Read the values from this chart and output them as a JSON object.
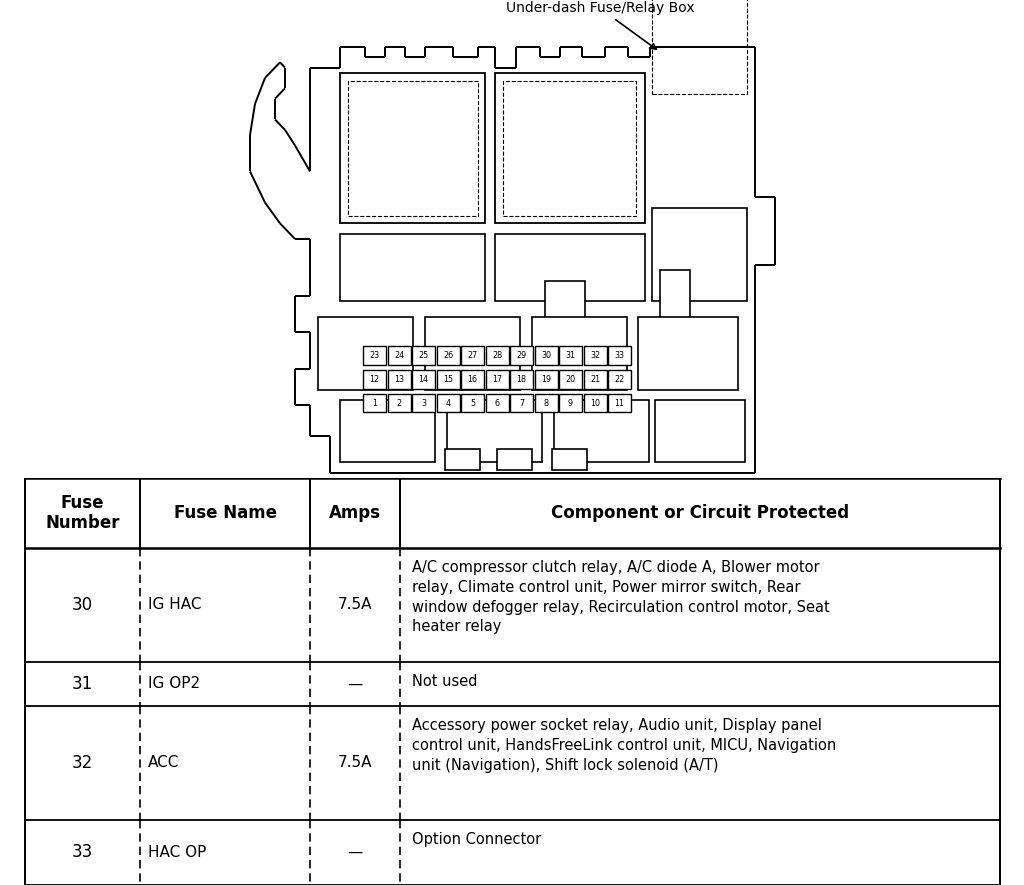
{
  "title_label": "Under-dash Fuse/Relay Box",
  "table_headers": [
    "Fuse\nNumber",
    "Fuse Name",
    "Amps",
    "Component or Circuit Protected"
  ],
  "table_rows": [
    [
      "30",
      "IG HAC",
      "7.5A",
      "A/C compressor clutch relay, A/C diode A, Blower motor\nrelay, Climate control unit, Power mirror switch, Rear\nwindow defogger relay, Recirculation control motor, Seat\nheater relay"
    ],
    [
      "31",
      "IG OP2",
      "—",
      "Not used"
    ],
    [
      "32",
      "ACC",
      "7.5A",
      "Accessory power socket relay, Audio unit, Display panel\ncontrol unit, HandsFreeLink control unit, MICU, Navigation\nunit (Navigation), Shift lock solenoid (A/T)"
    ],
    [
      "33",
      "HAC OP",
      "—",
      "Option Connector"
    ]
  ],
  "bg_color": "#ffffff",
  "text_color": "#000000"
}
